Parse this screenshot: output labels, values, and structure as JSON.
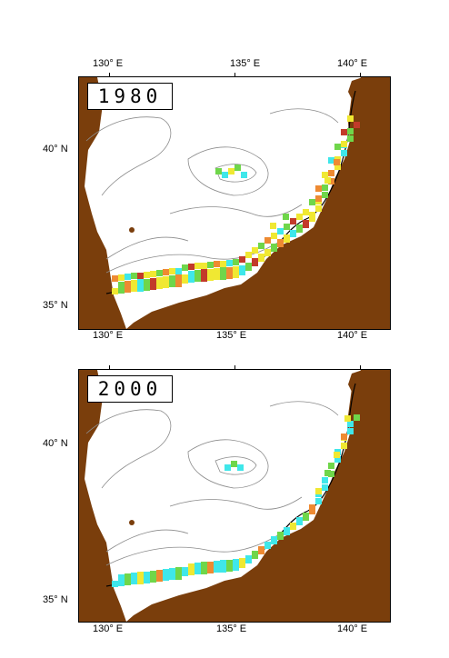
{
  "panels": [
    {
      "id": "top",
      "year": "1980"
    },
    {
      "id": "bottom",
      "year": "2000"
    }
  ],
  "axes": {
    "lon_labels": [
      "130° E",
      "135° E",
      "140° E"
    ],
    "lat_labels": [
      "40° N",
      "35° N"
    ]
  },
  "colors": {
    "land": "#7a3e0c",
    "contour": "#8c8c8c",
    "coast": "#000000",
    "cell_low": "#3fe7ea",
    "cell_mid": "#6fd64a",
    "cell_high": "#f0e832",
    "cell_max": "#ee8a32",
    "cell_peak": "#c23a2a"
  }
}
